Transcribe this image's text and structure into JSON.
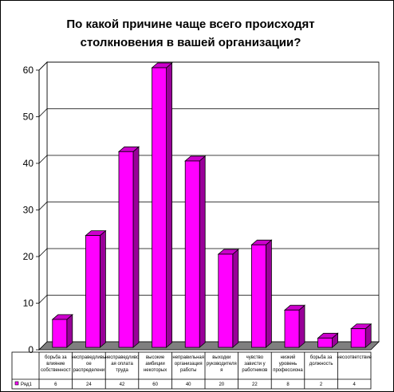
{
  "chart_data": {
    "type": "bar",
    "title_lines": [
      "По какой причине чаще всего происходят",
      "столкновения в вашей организации?"
    ],
    "categories": [
      [
        "борьба за",
        "влияние",
        "собственност"
      ],
      [
        "несправедливы",
        "ое",
        "распределени"
      ],
      [
        "несправедливо",
        "ая оплата",
        "труда"
      ],
      [
        "высокие",
        "амбиции",
        "некоторых"
      ],
      [
        "неправильная",
        "организация",
        "работы"
      ],
      [
        "выходки",
        "руководителя",
        "я"
      ],
      [
        "чувство",
        "зависти у",
        "работников"
      ],
      [
        "низкий",
        "уровень",
        "профессиона"
      ],
      [
        "борьба за",
        "должность"
      ],
      [
        "несоответствие"
      ]
    ],
    "series": [
      {
        "name": "Ряд1",
        "values": [
          6,
          24,
          42,
          60,
          40,
          20,
          22,
          8,
          2,
          4
        ]
      }
    ],
    "value_labels": [
      "6",
      "24",
      "42",
      "60",
      "40",
      "20",
      "22",
      "8",
      "2",
      "4"
    ],
    "yticks": [
      "0",
      "10",
      "20",
      "30",
      "40",
      "50",
      "60"
    ],
    "ylim": [
      0,
      60
    ],
    "grid": true,
    "legend": "bottom-left table",
    "bar_color": "#ff00ff",
    "bar_side_color": "#990099",
    "bar_top_color": "#cc00cc",
    "floor_color": "#7f7f7f"
  }
}
